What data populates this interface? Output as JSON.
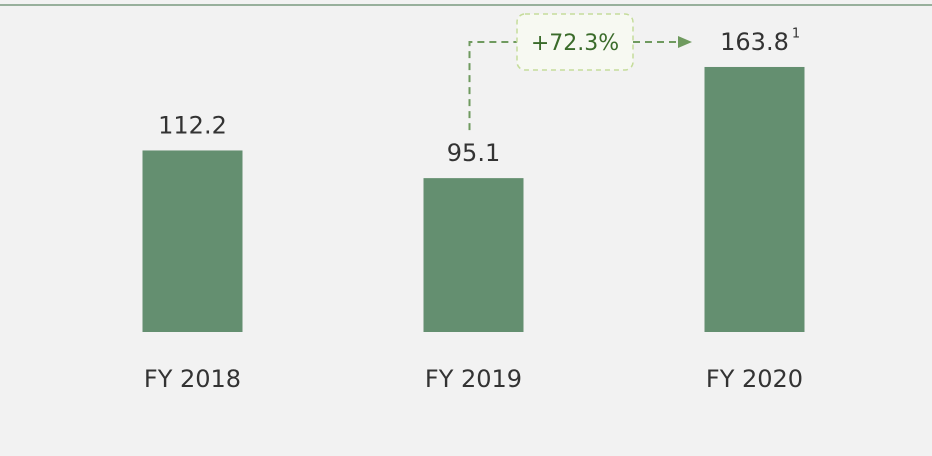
{
  "chart_data": {
    "type": "bar",
    "categories": [
      "FY 2018",
      "FY 2019",
      "FY 2020"
    ],
    "values": [
      112.2,
      95.1,
      163.8
    ],
    "color": "#648f70",
    "ylim": [
      0,
      200
    ],
    "value_label_footnote": {
      "index": 2,
      "text": "1"
    },
    "growth_annotation": {
      "from": 1,
      "to": 2,
      "text": "+72.3%"
    }
  }
}
